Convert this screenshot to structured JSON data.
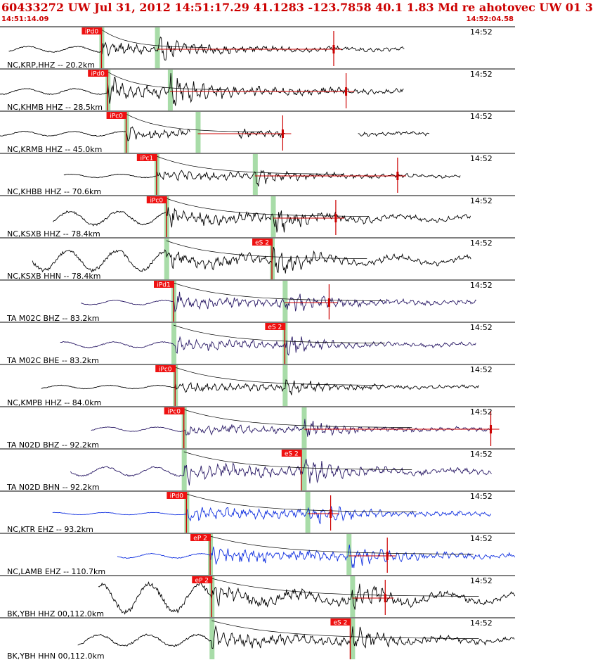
{
  "header": {
    "title": "60433272 UW Jul 31, 2012 14:51:17.29   41.1283 -123.7858 40.1 1.83 Md re ahotovec UW 01   3",
    "start_time": "14:51:14.09",
    "end_time": "14:52:04.58"
  },
  "colors": {
    "header_text": "#cc0000",
    "pick_box": "#ee1111",
    "pick_line": "#cc0000",
    "bar": "#a8dca8",
    "trace_black": "#000000",
    "trace_navy": "#2a1a66",
    "trace_blue": "#1030e0"
  },
  "chart_data": {
    "type": "line",
    "title": "",
    "xlabel": "",
    "ylabel": "",
    "tick_label": "14:52",
    "xlim_label": [
      "14:51:14.09",
      "14:52:04.58"
    ],
    "traces": [
      {
        "label": "NC,KRP,HHZ -- 20.2km",
        "color": "black",
        "pick": "iPd0",
        "onset": 0.197,
        "s": 0.305,
        "amp": 0.6,
        "end": 0.785,
        "noise": 0.05,
        "marks": [
          0.648
        ]
      },
      {
        "label": "NC,KHMB HHZ -- 28.5km",
        "color": "black",
        "pick": "iPd0",
        "onset": 0.209,
        "s": 0.33,
        "amp": 0.85,
        "end": 0.785,
        "noise": 0.05,
        "marks": [
          0.672
        ]
      },
      {
        "label": "NC,KRMB HHZ -- 45.0km",
        "color": "black",
        "pick": "iPc0",
        "onset": 0.245,
        "s": 0.384,
        "amp": 0.55,
        "end": 0.835,
        "noise": 0.04,
        "gaps": [
          [
            0.37,
            0.46
          ],
          [
            0.555,
            0.695
          ]
        ],
        "marks": [
          0.549
        ]
      },
      {
        "label": "NC,KHBB HHZ -- 70.6km",
        "color": "black",
        "pick": "iPc1",
        "onset": 0.304,
        "s": 0.495,
        "amp": 0.55,
        "end": 0.895,
        "noise": 0.03,
        "marks": [
          0.772
        ]
      },
      {
        "label": "NC,KSXB HHZ -- 78.4km",
        "color": "black",
        "pick": "iPc0",
        "onset": 0.323,
        "s": 0.53,
        "amp": 0.75,
        "end": 0.915,
        "noise": 0.12,
        "marks": [
          0.652
        ]
      },
      {
        "label": "NC,KSXB HHN -- 78.4km",
        "color": "black",
        "pick": "eS 2",
        "onset": 0.323,
        "s": 0.528,
        "amp": 0.8,
        "end": 0.915,
        "noise": 0.18,
        "pickAt": 0.528
      },
      {
        "label": "TA M02C BHZ -- 83.2km",
        "color": "navy",
        "pick": "iPd1",
        "onset": 0.337,
        "s": 0.553,
        "amp": 0.7,
        "end": 0.925,
        "noise": 0.04,
        "marks": [
          0.639
        ]
      },
      {
        "label": "TA M02C BHE -- 83.2km",
        "color": "navy",
        "pick": "eS 2",
        "onset": 0.337,
        "s": 0.553,
        "amp": 0.6,
        "end": 0.925,
        "noise": 0.05,
        "pickAt": 0.553
      },
      {
        "label": "NC,KMPB HHZ -- 84.0km",
        "color": "black",
        "pick": "iPc0",
        "onset": 0.34,
        "s": 0.553,
        "amp": 0.55,
        "end": 0.93,
        "noise": 0.03
      },
      {
        "label": "TA N02D BHZ -- 92.2km",
        "color": "navy",
        "pick": "iPc0",
        "onset": 0.357,
        "s": 0.59,
        "amp": 0.55,
        "end": 0.955,
        "noise": 0.04,
        "marks": [
          0.953
        ]
      },
      {
        "label": "TA N02D BHN -- 92.2km",
        "color": "navy",
        "pick": "eS 2",
        "onset": 0.357,
        "s": 0.59,
        "amp": 0.8,
        "end": 0.955,
        "noise": 0.08,
        "pickAt": 0.585
      },
      {
        "label": "NC,KTR EHZ -- 93.2km",
        "color": "blue",
        "pick": "iPd0",
        "onset": 0.362,
        "s": 0.597,
        "amp": 0.75,
        "end": 0.955,
        "noise": 0.02,
        "marks": [
          0.642
        ]
      },
      {
        "label": "NC,LAMB EHZ -- 110.7km",
        "color": "blue",
        "pick": "eP 2",
        "onset": 0.408,
        "s": 0.677,
        "amp": 0.8,
        "end": 1.0,
        "noise": 0.04,
        "marks": [
          0.752
        ]
      },
      {
        "label": "BK,YBH HHZ 00,112.0km",
        "color": "black",
        "pick": "eP 2",
        "onset": 0.411,
        "s": 0.684,
        "amp": 0.85,
        "end": 1.0,
        "noise": 0.25,
        "marks": [
          0.748
        ]
      },
      {
        "label": "BK,YBH HHN 00,112.0km",
        "color": "black",
        "pick": "eS 2",
        "onset": 0.411,
        "s": 0.684,
        "amp": 0.75,
        "end": 1.0,
        "noise": 0.1,
        "pickAt": 0.68
      }
    ]
  }
}
